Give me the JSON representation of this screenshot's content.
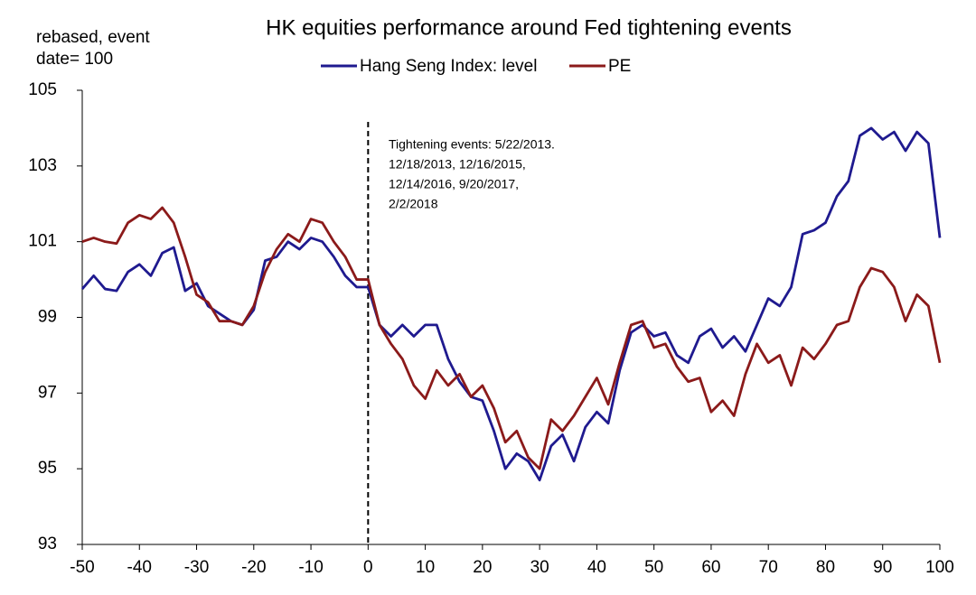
{
  "chart_data": {
    "type": "line",
    "title": "HK equities performance around Fed tightening events",
    "y_label": [
      "rebased, event",
      "date= 100"
    ],
    "annotation": [
      "Tightening events: 5/22/2013.",
      "12/18/2013, 12/16/2015,",
      "12/14/2016, 9/20/2017,",
      "2/2/2018"
    ],
    "vline": 0,
    "x": [
      -50,
      -48,
      -46,
      -44,
      -42,
      -40,
      -38,
      -36,
      -34,
      -32,
      -30,
      -28,
      -26,
      -24,
      -22,
      -20,
      -18,
      -16,
      -14,
      -12,
      -10,
      -8,
      -6,
      -4,
      -2,
      0,
      2,
      4,
      6,
      8,
      10,
      12,
      14,
      16,
      18,
      20,
      22,
      24,
      26,
      28,
      30,
      32,
      34,
      36,
      38,
      40,
      42,
      44,
      46,
      48,
      50,
      52,
      54,
      56,
      58,
      60,
      62,
      64,
      66,
      68,
      70,
      72,
      74,
      76,
      78,
      80,
      82,
      84,
      86,
      88,
      90,
      92,
      94,
      96,
      98,
      100
    ],
    "series": [
      {
        "name": "Hang Seng Index: level",
        "color": "#1f1a8f",
        "values": [
          99.75,
          100.1,
          99.75,
          99.7,
          100.2,
          100.4,
          100.1,
          100.7,
          100.85,
          99.7,
          99.9,
          99.3,
          99.1,
          98.9,
          98.8,
          99.2,
          100.5,
          100.6,
          101.0,
          100.8,
          101.1,
          101.0,
          100.6,
          100.1,
          99.8,
          99.8,
          98.8,
          98.5,
          98.8,
          98.5,
          98.8,
          98.8,
          97.9,
          97.3,
          96.9,
          96.8,
          96.0,
          95.0,
          95.4,
          95.2,
          94.7,
          95.6,
          95.9,
          95.2,
          96.1,
          96.5,
          96.2,
          97.6,
          98.6,
          98.8,
          98.5,
          98.6,
          98.0,
          97.8,
          98.5,
          98.7,
          98.2,
          98.5,
          98.1,
          98.8,
          99.5,
          99.3,
          99.8,
          101.2,
          101.3,
          101.5,
          102.2,
          102.6,
          103.8,
          104.0,
          103.7,
          103.9,
          103.4,
          103.9,
          103.6,
          101.1
        ]
      },
      {
        "name": "PE",
        "color": "#8b1a1a",
        "values": [
          101.0,
          101.1,
          101.0,
          100.95,
          101.5,
          101.7,
          101.6,
          101.9,
          101.5,
          100.6,
          99.6,
          99.4,
          98.9,
          98.9,
          98.8,
          99.3,
          100.2,
          100.8,
          101.2,
          101.0,
          101.6,
          101.5,
          101.0,
          100.6,
          100.0,
          100.0,
          98.8,
          98.3,
          97.9,
          97.2,
          96.85,
          97.6,
          97.2,
          97.5,
          96.9,
          97.2,
          96.6,
          95.7,
          96.0,
          95.3,
          95.0,
          96.3,
          96.0,
          96.4,
          96.9,
          97.4,
          96.7,
          97.8,
          98.8,
          98.9,
          98.2,
          98.3,
          97.7,
          97.3,
          97.4,
          96.5,
          96.8,
          96.4,
          97.5,
          98.3,
          97.8,
          98.0,
          97.2,
          98.2,
          97.9,
          98.3,
          98.8,
          98.9,
          99.8,
          100.3,
          100.2,
          99.8,
          98.9,
          99.6,
          99.3,
          97.8
        ]
      }
    ],
    "xlim": [
      -50,
      100
    ],
    "xticks": [
      -50,
      -40,
      -30,
      -20,
      -10,
      0,
      10,
      20,
      30,
      40,
      50,
      60,
      70,
      80,
      90,
      100
    ],
    "ylim": [
      93,
      105
    ],
    "yticks": [
      93,
      95,
      97,
      99,
      101,
      103,
      105
    ],
    "grid": false,
    "legend": "top"
  }
}
